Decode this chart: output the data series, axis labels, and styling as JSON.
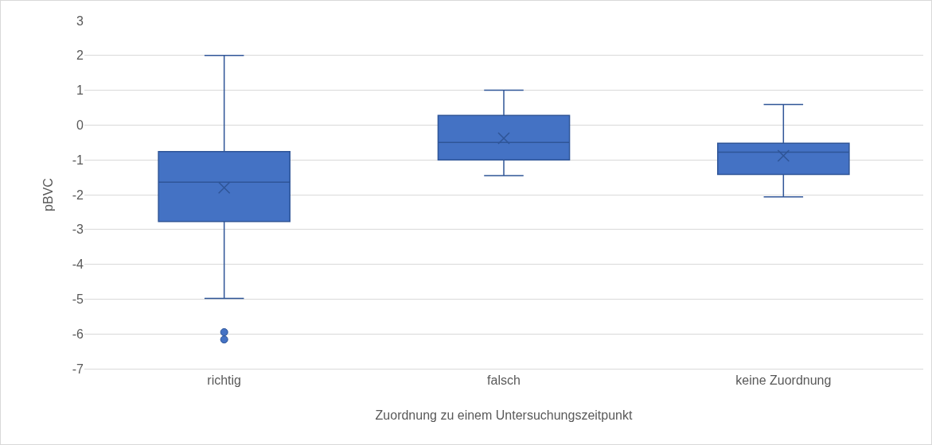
{
  "chart_data": {
    "type": "box",
    "xlabel": "Zuordnung zu einem Untersuchungszeitpunkt",
    "ylabel": "pBVC",
    "categories": [
      "richtig",
      "falsch",
      "keine Zuordnung"
    ],
    "color": "#4472c4",
    "boxes": [
      {
        "low": -4.98,
        "q1": -2.77,
        "median": -1.64,
        "q3": -0.76,
        "high": 2,
        "mean": -1.8,
        "outliers": [
          -5.95,
          -6.16
        ]
      },
      {
        "low": -1.45,
        "q1": -1.0,
        "median": -0.5,
        "q3": 0.28,
        "high": 1,
        "mean": -0.38
      },
      {
        "low": -2.06,
        "q1": -1.42,
        "median": -0.78,
        "q3": -0.52,
        "high": 0.59,
        "mean": -0.88
      }
    ],
    "ylim": [
      -7,
      3
    ],
    "yticks": [
      -7,
      -6,
      -5,
      -4,
      -3,
      -2,
      -1,
      0,
      1,
      2,
      3
    ],
    "grid": "y"
  }
}
